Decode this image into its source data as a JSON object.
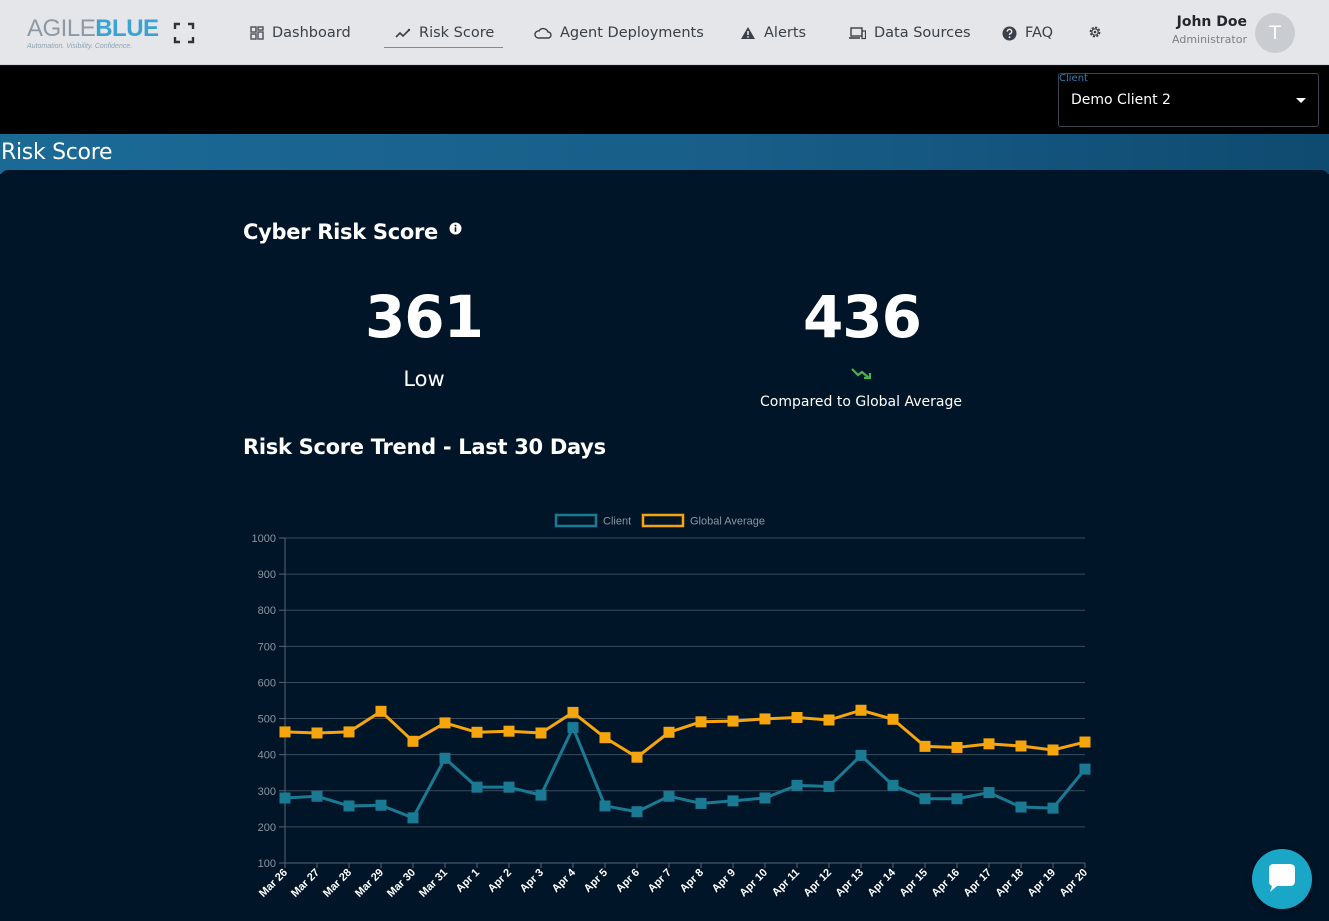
{
  "app": {
    "logo": {
      "word_a": "AGILE",
      "word_b": "BLUE",
      "tagline": "Automation. Visibility. Confidence."
    }
  },
  "nav": {
    "items": [
      {
        "label": "Dashboard",
        "icon": "dashboard-icon",
        "active": false
      },
      {
        "label": "Risk Score",
        "icon": "trend-icon",
        "active": true
      },
      {
        "label": "Agent Deployments",
        "icon": "cloud-icon",
        "active": false
      },
      {
        "label": "Alerts",
        "icon": "warning-icon",
        "active": false
      },
      {
        "label": "Data Sources",
        "icon": "devices-icon",
        "active": false
      },
      {
        "label": "FAQ",
        "icon": "help-icon",
        "active": false
      }
    ],
    "settings_icon": "gear-icon"
  },
  "user": {
    "name": "John Doe",
    "role": "Administrator",
    "initial": "T"
  },
  "client_select": {
    "label": "Client",
    "value": "Demo Client 2"
  },
  "page": {
    "title": "Risk Score"
  },
  "score": {
    "heading": "Cyber Risk Score",
    "value": "361",
    "level": "Low",
    "global_value": "436",
    "compare_label": "Compared to Global Average",
    "trend_color": "#4caf50"
  },
  "trend": {
    "heading": "Risk Score Trend - Last 30 Days"
  },
  "colors": {
    "client": "#1a7a93",
    "global": "#f7a50c",
    "band": "#1b6a96",
    "panel": "#011528"
  },
  "chart_data": {
    "type": "line",
    "categories": [
      "Mar 26",
      "Mar 27",
      "Mar 28",
      "Mar 29",
      "Mar 30",
      "Mar 31",
      "Apr 1",
      "Apr 2",
      "Apr 3",
      "Apr 4",
      "Apr 5",
      "Apr 6",
      "Apr 7",
      "Apr 8",
      "Apr 9",
      "Apr 10",
      "Apr 11",
      "Apr 12",
      "Apr 13",
      "Apr 14",
      "Apr 15",
      "Apr 16",
      "Apr 17",
      "Apr 18",
      "Apr 19",
      "Apr 20"
    ],
    "series": [
      {
        "name": "Client",
        "color": "#1a7a93",
        "values": [
          280,
          285,
          258,
          260,
          225,
          390,
          310,
          310,
          288,
          475,
          258,
          242,
          285,
          265,
          272,
          280,
          315,
          312,
          398,
          315,
          278,
          278,
          295,
          255,
          252,
          360
        ]
      },
      {
        "name": "Global Average",
        "color": "#f7a50c",
        "values": [
          463,
          460,
          463,
          520,
          437,
          488,
          462,
          465,
          460,
          517,
          447,
          393,
          462,
          491,
          493,
          499,
          503,
          496,
          523,
          498,
          423,
          420,
          430,
          424,
          413,
          435
        ]
      }
    ],
    "ylim": [
      100,
      1000
    ],
    "yticks": [
      100,
      200,
      300,
      400,
      500,
      600,
      700,
      800,
      900,
      1000
    ],
    "grid": true,
    "legend": "top"
  }
}
